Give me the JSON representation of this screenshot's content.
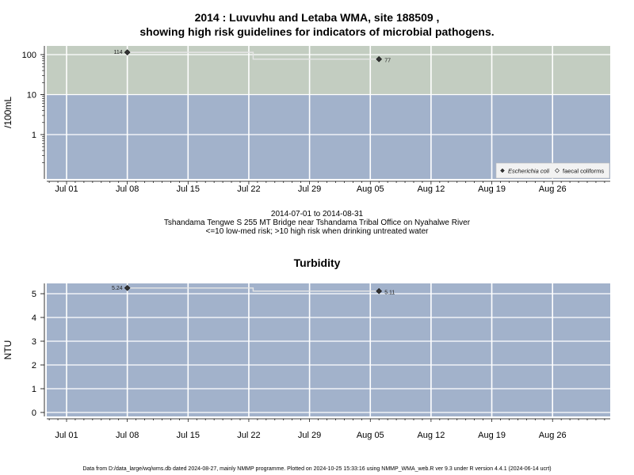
{
  "titles": {
    "main_line1": "2014 : Luvuvhu and Letaba WMA, site 188509 ,",
    "main_line2": "showing high risk guidelines for indicators of microbial pathogens.",
    "turbidity": "Turbidity"
  },
  "caption": {
    "period": "2014-07-01 to 2014-08-31",
    "site": "Tshandama Tengwe S 255 MT Bridge near Tshandama Tribal Office on Nyahalwe River",
    "risk_note": "<=10 low-med risk; >10 high risk when drinking untreated water"
  },
  "footer": "Data from D:/data_large/wq/wms.db dated 2024-08-27, mainly NMMP programme. Plotted on 2024-10-25 15:33:16 using NMMP_WMA_web.R ver 9.3 under R version 4.4.1 (2024-06-14 ucrt)",
  "colors": {
    "high_risk_band": "#c3cdc1",
    "low_risk_band": "#a2b2cb",
    "turbidity_bg": "#a2b2cb",
    "line": "#e6e6e6",
    "point": "#333333"
  },
  "chart_data": [
    {
      "type": "line",
      "scale": "log",
      "ylabel": "/100mL",
      "x_ticks": [
        "Jul 01",
        "Jul 08",
        "Jul 15",
        "Jul 22",
        "Jul 29",
        "Aug 05",
        "Aug 12",
        "Aug 19",
        "Aug 26"
      ],
      "y_ticks": [
        "1",
        "10",
        "100"
      ],
      "threshold": 10,
      "series": [
        {
          "name": "Escherichia coli",
          "x": [
            "2014-07-08",
            "2014-08-06"
          ],
          "values": [
            114,
            77
          ],
          "labels": [
            "114",
            "77"
          ]
        },
        {
          "name": "faecal coliforms",
          "x": [],
          "values": []
        }
      ],
      "legend_position": "bottom-right",
      "grid": true
    },
    {
      "type": "line",
      "ylabel": "NTU",
      "x_ticks": [
        "Jul 01",
        "Jul 08",
        "Jul 15",
        "Jul 22",
        "Jul 29",
        "Aug 05",
        "Aug 12",
        "Aug 19",
        "Aug 26"
      ],
      "y_ticks": [
        "0",
        "1",
        "2",
        "3",
        "4",
        "5"
      ],
      "ylim": [
        0,
        5
      ],
      "series": [
        {
          "name": "",
          "x": [
            "2014-07-08",
            "2014-08-06"
          ],
          "values": [
            5.24,
            5.11
          ],
          "labels": [
            "5.24",
            "5.11"
          ]
        }
      ],
      "grid": true
    }
  ]
}
